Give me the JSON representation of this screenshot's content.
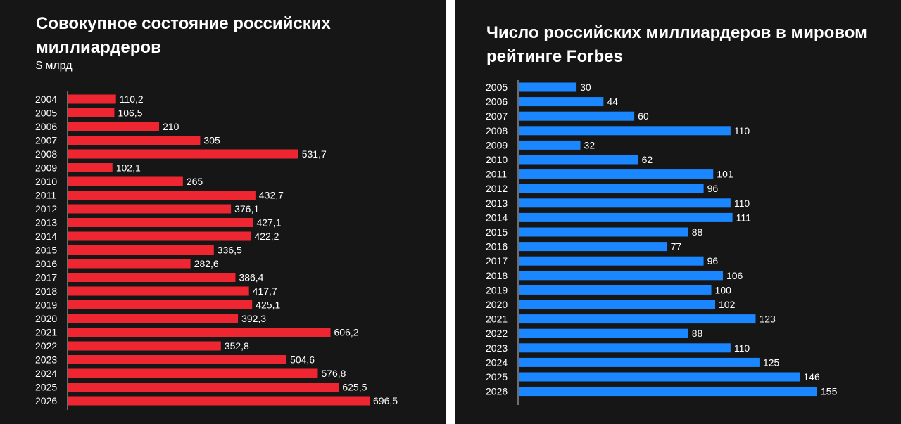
{
  "colors": {
    "background": "#161616",
    "red": "#ed2632",
    "blue": "#1a86ff",
    "text": "#ffffff",
    "axis": "#8a8a8a"
  },
  "chart_data": [
    {
      "type": "bar",
      "orientation": "horizontal",
      "title": "Совокупное состояние российских миллиардеров",
      "subtitle": "$ млрд",
      "xlabel": "",
      "ylabel": "",
      "grid": false,
      "color": "#ed2632",
      "categories": [
        "2004",
        "2005",
        "2006",
        "2007",
        "2008",
        "2009",
        "2010",
        "2011",
        "2012",
        "2013",
        "2014",
        "2015",
        "2016",
        "2017",
        "2018",
        "2019",
        "2020",
        "2021",
        "2022",
        "2023",
        "2024",
        "2025",
        "2026"
      ],
      "values": [
        110.2,
        106.5,
        210,
        305,
        531.7,
        102.1,
        265,
        432.7,
        376.1,
        427.1,
        422.2,
        336.5,
        282.6,
        386.4,
        417.7,
        425.1,
        392.3,
        606.2,
        352.8,
        504.6,
        576.8,
        625.5,
        696.5
      ],
      "data_labels": [
        "110,2",
        "106,5",
        "210",
        "305",
        "531,7",
        "102,1",
        "265",
        "432,7",
        "376,1",
        "427,1",
        "422,2",
        "336,5",
        "282,6",
        "386,4",
        "417,7",
        "425,1",
        "392,3",
        "606,2",
        "352,8",
        "504,6",
        "576,8",
        "625,5",
        "696,5"
      ]
    },
    {
      "type": "bar",
      "orientation": "horizontal",
      "title": "Число российских миллиардеров в мировом рейтинге Forbes",
      "xlabel": "",
      "ylabel": "",
      "grid": false,
      "color": "#1a86ff",
      "categories": [
        "2005",
        "2006",
        "2007",
        "2008",
        "2009",
        "2010",
        "2011",
        "2012",
        "2013",
        "2014",
        "2015",
        "2016",
        "2017",
        "2018",
        "2019",
        "2020",
        "2021",
        "2022",
        "2023",
        "2024",
        "2025",
        "2026"
      ],
      "values": [
        30,
        44,
        60,
        110,
        32,
        62,
        101,
        96,
        110,
        111,
        88,
        77,
        96,
        106,
        100,
        102,
        123,
        88,
        110,
        125,
        146,
        155
      ],
      "data_labels": [
        "30",
        "44",
        "60",
        "110",
        "32",
        "62",
        "101",
        "96",
        "110",
        "111",
        "88",
        "77",
        "96",
        "106",
        "100",
        "102",
        "123",
        "88",
        "110",
        "125",
        "146",
        "155"
      ]
    }
  ]
}
